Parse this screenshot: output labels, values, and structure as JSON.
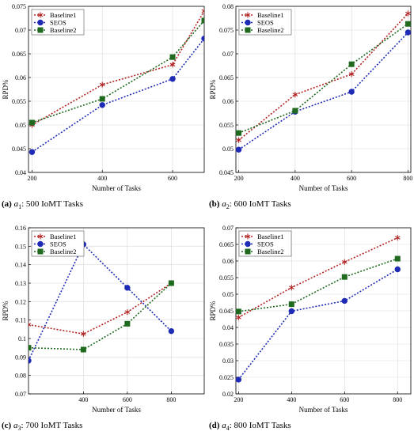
{
  "series_styles": [
    {
      "color": "#b22222",
      "marker": "star",
      "dash": "2,2"
    },
    {
      "color": "#1f2bb5",
      "marker": "circle",
      "dash": "2,2"
    },
    {
      "color": "#1f6a1f",
      "marker": "square",
      "dash": "2,2"
    }
  ],
  "chart_data": [
    {
      "type": "line",
      "caption": {
        "letter": "(a)",
        "var": "a",
        "sub": "1",
        "text": ": 500 IoMT Tasks"
      },
      "xlabel": "Number of Tasks",
      "ylabel": "RPD%",
      "xlim": [
        190,
        690
      ],
      "ylim": [
        0.04,
        0.075
      ],
      "xticks": [
        200,
        400,
        600
      ],
      "yticks": [
        0.04,
        0.045,
        0.05,
        0.055,
        0.06,
        0.065,
        0.07,
        0.075
      ],
      "legend": "top-left",
      "series": [
        {
          "name": "Baseline1",
          "x": [
            200,
            400,
            600,
            690
          ],
          "y": [
            0.05,
            0.0585,
            0.0627,
            0.074
          ]
        },
        {
          "name": "SEOS",
          "x": [
            200,
            400,
            600,
            690
          ],
          "y": [
            0.0443,
            0.0542,
            0.0597,
            0.0682
          ]
        },
        {
          "name": "Baseline2",
          "x": [
            200,
            400,
            600,
            690
          ],
          "y": [
            0.0505,
            0.0555,
            0.0643,
            0.072
          ]
        }
      ]
    },
    {
      "type": "line",
      "caption": {
        "letter": "(b)",
        "var": "a",
        "sub": "2",
        "text": ": 600 IoMT Tasks"
      },
      "xlabel": "Number of Tasks",
      "ylabel": "RPD%",
      "xlim": [
        190,
        810
      ],
      "ylim": [
        0.045,
        0.08
      ],
      "xticks": [
        200,
        400,
        600,
        800
      ],
      "yticks": [
        0.045,
        0.05,
        0.055,
        0.06,
        0.065,
        0.07,
        0.075,
        0.08
      ],
      "legend": "top-left",
      "series": [
        {
          "name": "Baseline1",
          "x": [
            200,
            400,
            600,
            800
          ],
          "y": [
            0.0518,
            0.0614,
            0.0657,
            0.0785
          ]
        },
        {
          "name": "SEOS",
          "x": [
            200,
            400,
            600,
            800
          ],
          "y": [
            0.0498,
            0.0578,
            0.062,
            0.0745
          ]
        },
        {
          "name": "Baseline2",
          "x": [
            200,
            400,
            600,
            800
          ],
          "y": [
            0.0533,
            0.058,
            0.0678,
            0.0763
          ]
        }
      ]
    },
    {
      "type": "line",
      "caption": {
        "letter": "(c)",
        "var": "a",
        "sub": "3",
        "text": ": 700 IoMT Tasks"
      },
      "xlabel": "Number of Tasks",
      "ylabel": "RPD%",
      "xlim": [
        150,
        950
      ],
      "ylim": [
        0.07,
        0.16
      ],
      "xticks": [
        400,
        600,
        800
      ],
      "yticks": [
        0.07,
        0.08,
        0.09,
        0.1,
        0.11,
        0.12,
        0.13,
        0.14,
        0.15,
        0.16
      ],
      "legend": "top-left",
      "series": [
        {
          "name": "Baseline1",
          "x": [
            150,
            400,
            600,
            800
          ],
          "y": [
            0.1075,
            0.1025,
            0.1143,
            0.13
          ]
        },
        {
          "name": "SEOS",
          "x": [
            150,
            400,
            600,
            800
          ],
          "y": [
            0.088,
            0.151,
            0.1275,
            0.104
          ]
        },
        {
          "name": "Baseline2",
          "x": [
            150,
            400,
            600,
            800
          ],
          "y": [
            0.095,
            0.094,
            0.108,
            0.13
          ]
        }
      ]
    },
    {
      "type": "line",
      "caption": {
        "letter": "(d)",
        "var": "a",
        "sub": "4",
        "text": ": 800 IoMT Tasks"
      },
      "xlabel": "Number of Tasks",
      "ylabel": "RPD%",
      "xlim": [
        190,
        850
      ],
      "ylim": [
        0.02,
        0.07
      ],
      "xticks": [
        200,
        400,
        600,
        800
      ],
      "yticks": [
        0.02,
        0.025,
        0.03,
        0.035,
        0.04,
        0.045,
        0.05,
        0.055,
        0.06,
        0.065,
        0.07
      ],
      "legend": "top-left",
      "series": [
        {
          "name": "Baseline1",
          "x": [
            200,
            400,
            600,
            800
          ],
          "y": [
            0.043,
            0.052,
            0.0597,
            0.067
          ]
        },
        {
          "name": "SEOS",
          "x": [
            200,
            400,
            600,
            800
          ],
          "y": [
            0.0243,
            0.0449,
            0.048,
            0.0575
          ]
        },
        {
          "name": "Baseline2",
          "x": [
            200,
            400,
            600,
            800
          ],
          "y": [
            0.0448,
            0.047,
            0.0552,
            0.0607
          ]
        }
      ]
    }
  ]
}
